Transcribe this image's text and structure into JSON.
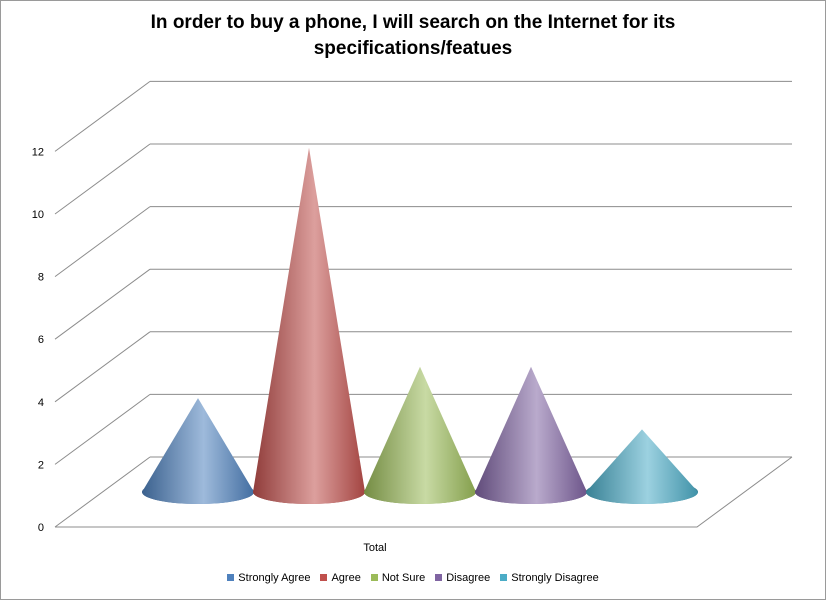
{
  "chart_data": {
    "type": "bar",
    "subtype": "3d-cone",
    "title": [
      "In order to buy a phone, I will search on the Internet for its",
      "specifications/featues"
    ],
    "categories": [
      "Total"
    ],
    "series": [
      {
        "name": "Strongly Agree",
        "values": [
          3
        ],
        "color": "#4F81BD"
      },
      {
        "name": "Agree",
        "values": [
          11
        ],
        "color": "#C0504D"
      },
      {
        "name": "Not Sure",
        "values": [
          4
        ],
        "color": "#9BBB59"
      },
      {
        "name": "Disagree",
        "values": [
          4
        ],
        "color": "#8064A2"
      },
      {
        "name": "Strongly Disagree",
        "values": [
          2
        ],
        "color": "#4BACC6"
      }
    ],
    "ylim": [
      0,
      12
    ],
    "yticks": [
      "0",
      "2",
      "4",
      "6",
      "8",
      "10",
      "12"
    ],
    "grid": true,
    "legend": "bottom"
  }
}
